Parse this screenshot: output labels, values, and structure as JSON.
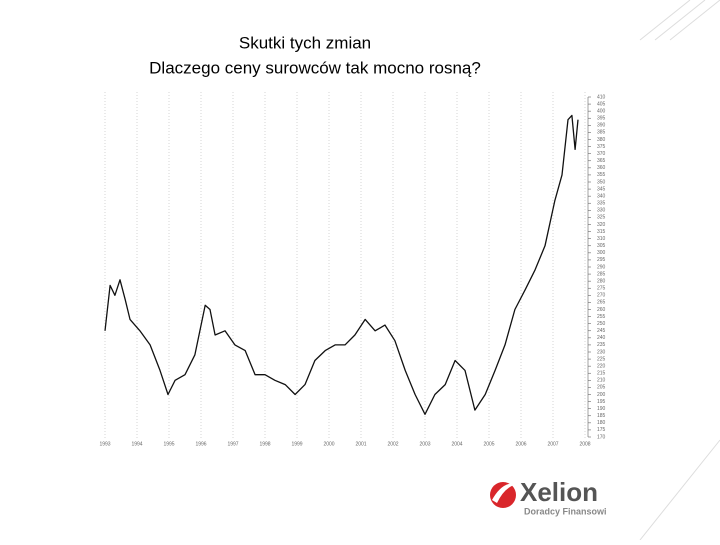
{
  "chart_data": {
    "type": "line",
    "title": "Skutki tych zmian",
    "subtitle": "Dlaczego ceny surowców tak mocno rosną?",
    "x": [
      1993.0,
      1993.16,
      1993.31,
      1993.47,
      1993.63,
      1993.78,
      1994.09,
      1994.41,
      1994.72,
      1994.97,
      1995.19,
      1995.5,
      1995.81,
      1996.13,
      1996.28,
      1996.44,
      1996.75,
      1997.06,
      1997.38,
      1997.69,
      1998.0,
      1998.31,
      1998.63,
      1998.94,
      1999.25,
      1999.56,
      1999.88,
      2000.19,
      2000.5,
      2000.81,
      2001.13,
      2001.44,
      2001.75,
      2002.06,
      2002.38,
      2002.69,
      2003.0,
      2003.31,
      2003.63,
      2003.94,
      2004.25,
      2004.56,
      2004.88,
      2005.19,
      2005.5,
      2005.81,
      2006.13,
      2006.44,
      2006.75,
      2007.06,
      2007.28,
      2007.47,
      2007.59,
      2007.69,
      2007.78
    ],
    "series": [
      {
        "color": "#111111",
        "values": [
          245,
          277,
          270,
          281,
          267,
          253,
          245,
          235,
          217,
          200,
          210,
          214,
          228,
          263,
          260,
          242,
          245,
          235,
          231,
          214,
          214,
          210,
          207,
          200,
          207,
          224,
          231,
          235,
          235,
          242,
          253,
          245,
          249,
          238,
          217,
          200,
          186,
          200,
          207,
          224,
          217,
          189,
          200,
          217,
          235,
          260,
          274,
          288,
          305,
          337,
          355,
          394,
          397,
          373,
          394
        ]
      }
    ],
    "xlim": [
      1993,
      2008
    ],
    "xticks": [
      1993,
      1994,
      1995,
      1996,
      1997,
      1998,
      1999,
      2000,
      2001,
      2002,
      2003,
      2004,
      2005,
      2006,
      2007,
      2008
    ],
    "ylim": [
      170,
      410
    ],
    "yticks": [
      170,
      175,
      180,
      185,
      190,
      195,
      200,
      205,
      210,
      215,
      220,
      225,
      230,
      235,
      240,
      245,
      250,
      255,
      260,
      265,
      270,
      275,
      280,
      285,
      290,
      295,
      300,
      305,
      310,
      315,
      320,
      325,
      330,
      335,
      340,
      345,
      350,
      355,
      360,
      365,
      370,
      375,
      380,
      385,
      390,
      395,
      400,
      405,
      410
    ],
    "grid": true
  },
  "logo": {
    "name": "Xelion",
    "tagline": "Doradcy Finansowi"
  }
}
